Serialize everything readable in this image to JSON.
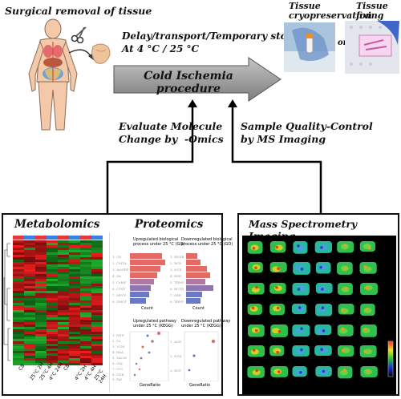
{
  "top": {
    "surgical": "Surgical removal of tissue",
    "delay": "Delay/transport/Temporary storage…",
    "temp": "At 4 °C / 25 °C",
    "cold": "Cold Ischemia procedure",
    "cryo": "Tissue\ncryopreservation",
    "fixing": "Tissue\nfixing",
    "or": "or"
  },
  "middle": {
    "evaluate": "Evaluate Molecule\nChange by  -Omics",
    "sample": "Sample Quality-Control\nby MS Imaging"
  },
  "panels": {
    "metabolomics": "Metabolomics",
    "proteomics": "Proteomics",
    "msi": "Mass Spectrometry Imaging"
  },
  "proteomics": {
    "up_go": "Upregulated biological\nprocess under 25 °C (GO)",
    "down_go": "Downregulated biological\nprocess under 25 °C (GO)",
    "up_kegg": "Upregulated pathway\nunder 25 °C (KEGG)",
    "down_kegg": "Downregulated pathway\nunder 25 °C (KEGG)",
    "count": "Count",
    "generatio": "GeneRatio"
  },
  "heatmap_cols": [
    "C8",
    "25°C 2H",
    "25°C 4H",
    "4°C 24H",
    "C8",
    "4°C 2H",
    "4°C 4H",
    "25°C 24H"
  ],
  "colors": {
    "arrow": "#8c8c8c",
    "bar_red": "#e46a66",
    "bar_blue": "#6b78c4",
    "heat_red": "#d81e1e",
    "heat_green": "#1f9a2c"
  }
}
